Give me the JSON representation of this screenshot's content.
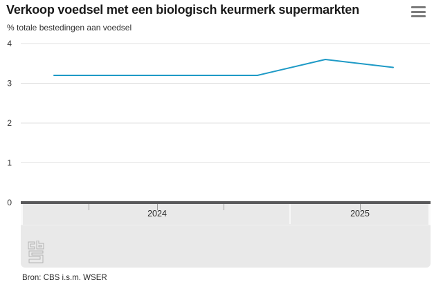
{
  "header": {
    "title": "Verkoop voedsel met een biologisch keurmerk supermarkten",
    "subtitle": "% totale bestedingen aan voedsel"
  },
  "icons": {
    "menu": "hamburger-menu",
    "logo": "cbs-logo"
  },
  "chart_data": {
    "type": "line",
    "title": "Verkoop voedsel met een biologisch keurmerk supermarkten",
    "ylabel": "% totale bestedingen aan voedsel",
    "x": [
      "2024-Q1",
      "2024-Q2",
      "2024-Q3",
      "2024-Q4",
      "2025-Q1",
      "2025-Q2"
    ],
    "series": [
      {
        "name": "% totale bestedingen aan voedsel",
        "values": [
          3.2,
          3.2,
          3.2,
          3.2,
          3.6,
          3.4
        ]
      }
    ],
    "ylim": [
      0,
      4
    ],
    "yticks": [
      0,
      1,
      2,
      3,
      4
    ],
    "grid": true,
    "legend_position": "none",
    "x_axis_labels": [
      "2024",
      "2025"
    ],
    "line_color": "#1e9ac6",
    "grid_color": "#e2e2e2",
    "navigator_bg": "#e9e9e9",
    "axis_bar_color": "#59595b"
  },
  "footer": {
    "source": "Bron: CBS i.s.m. WSER"
  }
}
